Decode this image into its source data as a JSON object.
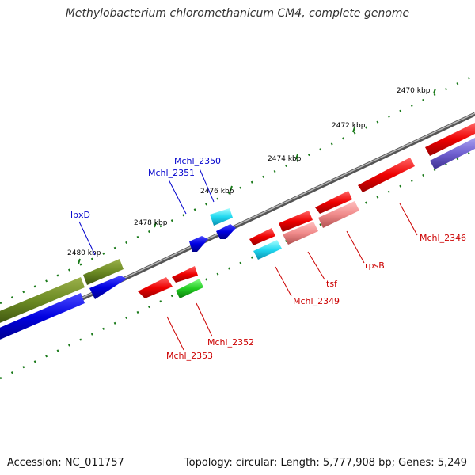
{
  "title": "Methylobacterium chloromethanicum CM4, complete genome",
  "footer": {
    "accession": "Accession: NC_011757",
    "summary": "Topology: circular; Length: 5,777,908 bp; Genes: 5,249"
  },
  "colors": {
    "backbone": "#888888",
    "tick": "#1a7a1a",
    "label_forward": "#0000cc",
    "label_reverse": "#cc0000"
  },
  "scale_labels": [
    "2470 kbp",
    "2472 kbp",
    "2474 kbp",
    "2476 kbp",
    "2478 kbp",
    "2480 kbp"
  ],
  "gene_labels": {
    "forward": [
      "Mchl_2350",
      "Mchl_2351",
      "lpxD"
    ],
    "reverse": [
      "Mchl_2346",
      "rpsB",
      "tsf",
      "Mchl_2349",
      "Mchl_2352",
      "Mchl_2353"
    ]
  },
  "features": [
    {
      "strand": "+",
      "track": "outer",
      "color": "olive"
    },
    {
      "strand": "+",
      "track": "outer",
      "color": "olive"
    },
    {
      "strand": "+",
      "track": "inner",
      "color": "blue"
    },
    {
      "strand": "+",
      "track": "inner",
      "color": "blue"
    },
    {
      "strand": "+",
      "track": "inner",
      "color": "blue"
    },
    {
      "strand": "+",
      "track": "inner",
      "color": "blue"
    },
    {
      "strand": "+",
      "track": "inner",
      "color": "cyan"
    },
    {
      "strand": "-",
      "track": "inner",
      "color": "red"
    },
    {
      "strand": "-",
      "track": "inner",
      "color": "red"
    },
    {
      "strand": "-",
      "track": "inner",
      "color": "red"
    },
    {
      "strand": "-",
      "track": "inner",
      "color": "red"
    },
    {
      "strand": "-",
      "track": "inner",
      "color": "red"
    },
    {
      "strand": "-",
      "track": "inner",
      "color": "red"
    },
    {
      "strand": "-",
      "track": "inner",
      "color": "red"
    },
    {
      "strand": "-",
      "track": "outer",
      "color": "green"
    },
    {
      "strand": "-",
      "track": "outer",
      "color": "cyan"
    },
    {
      "strand": "-",
      "track": "outer",
      "color": "pink"
    },
    {
      "strand": "-",
      "track": "outer",
      "color": "pink"
    },
    {
      "strand": "-",
      "track": "outer",
      "color": "slateblue"
    }
  ]
}
